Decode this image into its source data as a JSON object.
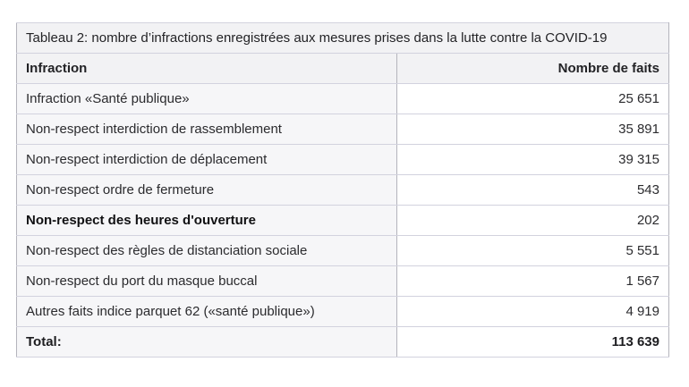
{
  "table": {
    "title": "Tableau 2: nombre d’infractions enregistrées aux mesures prises dans la lutte contre la COVID-19",
    "columns": {
      "infraction": "Infraction",
      "count": "Nombre de faits"
    },
    "rows": [
      {
        "label": "Infraction «Santé publique»",
        "value": "25 651",
        "emphasis": false
      },
      {
        "label": "Non-respect interdiction de rassemblement",
        "value": "35 891",
        "emphasis": false
      },
      {
        "label": "Non-respect interdiction de déplacement",
        "value": "39 315",
        "emphasis": false
      },
      {
        "label": "Non-respect ordre de fermeture",
        "value": "543",
        "emphasis": false
      },
      {
        "label": "Non-respect des heures d'ouverture",
        "value": "202",
        "emphasis": true
      },
      {
        "label": "Non-respect des règles de distanciation sociale",
        "value": "5 551",
        "emphasis": false
      },
      {
        "label": "Non-respect du port du masque buccal",
        "value": "1 567",
        "emphasis": false
      },
      {
        "label": "Autres faits indice parquet 62 («santé publique»)",
        "value": "4 919",
        "emphasis": false
      }
    ],
    "total": {
      "label": "Total:",
      "value": "113 639"
    },
    "colors": {
      "header_background": "#f2f2f4",
      "row_label_background": "#f6f6f8",
      "value_cell_background": "#ffffff",
      "border_vertical": "#b4b4bc",
      "border_horizontal": "#d2d2de",
      "text": "#2b2b2e"
    }
  }
}
